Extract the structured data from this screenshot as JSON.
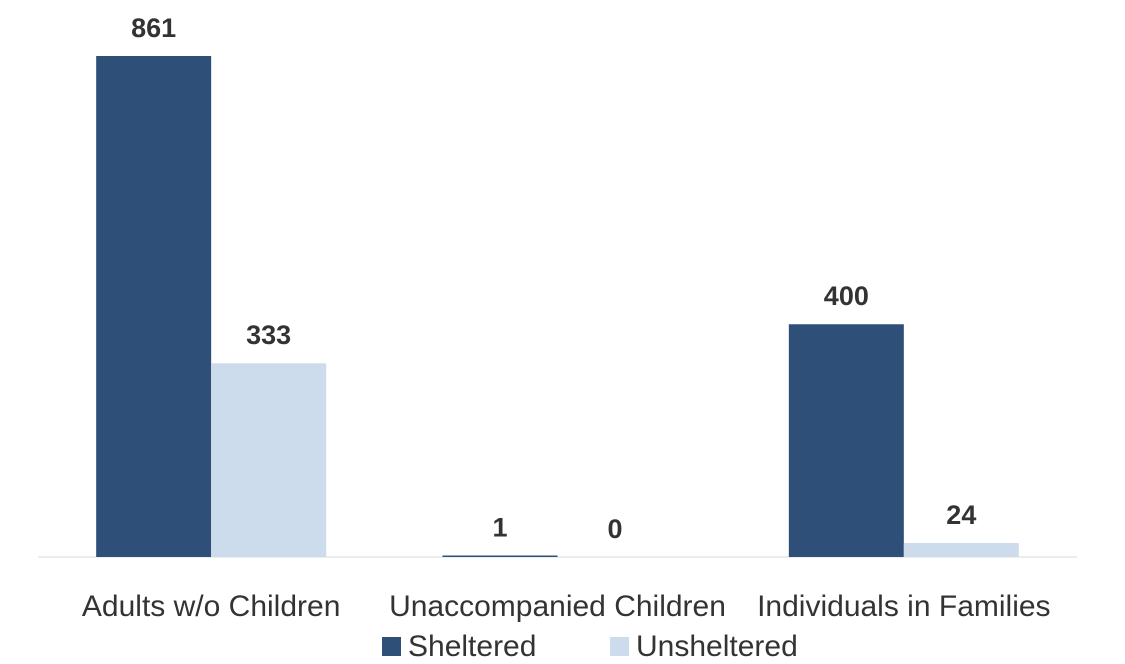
{
  "chart_data": {
    "type": "bar",
    "categories": [
      "Adults w/o Children",
      "Unaccompanied Children",
      "Individuals in Families"
    ],
    "series": [
      {
        "name": "Sheltered",
        "values": [
          861,
          1,
          400
        ],
        "color": "#2e5078"
      },
      {
        "name": "Unsheltered",
        "values": [
          333,
          0,
          24
        ],
        "color": "#ccdcec"
      }
    ],
    "data_labels": [
      [
        "861",
        "1",
        "400"
      ],
      [
        "333",
        "0",
        "24"
      ]
    ],
    "ylim": [
      0,
      861
    ],
    "grid": false,
    "legend_position": "bottom-center"
  }
}
